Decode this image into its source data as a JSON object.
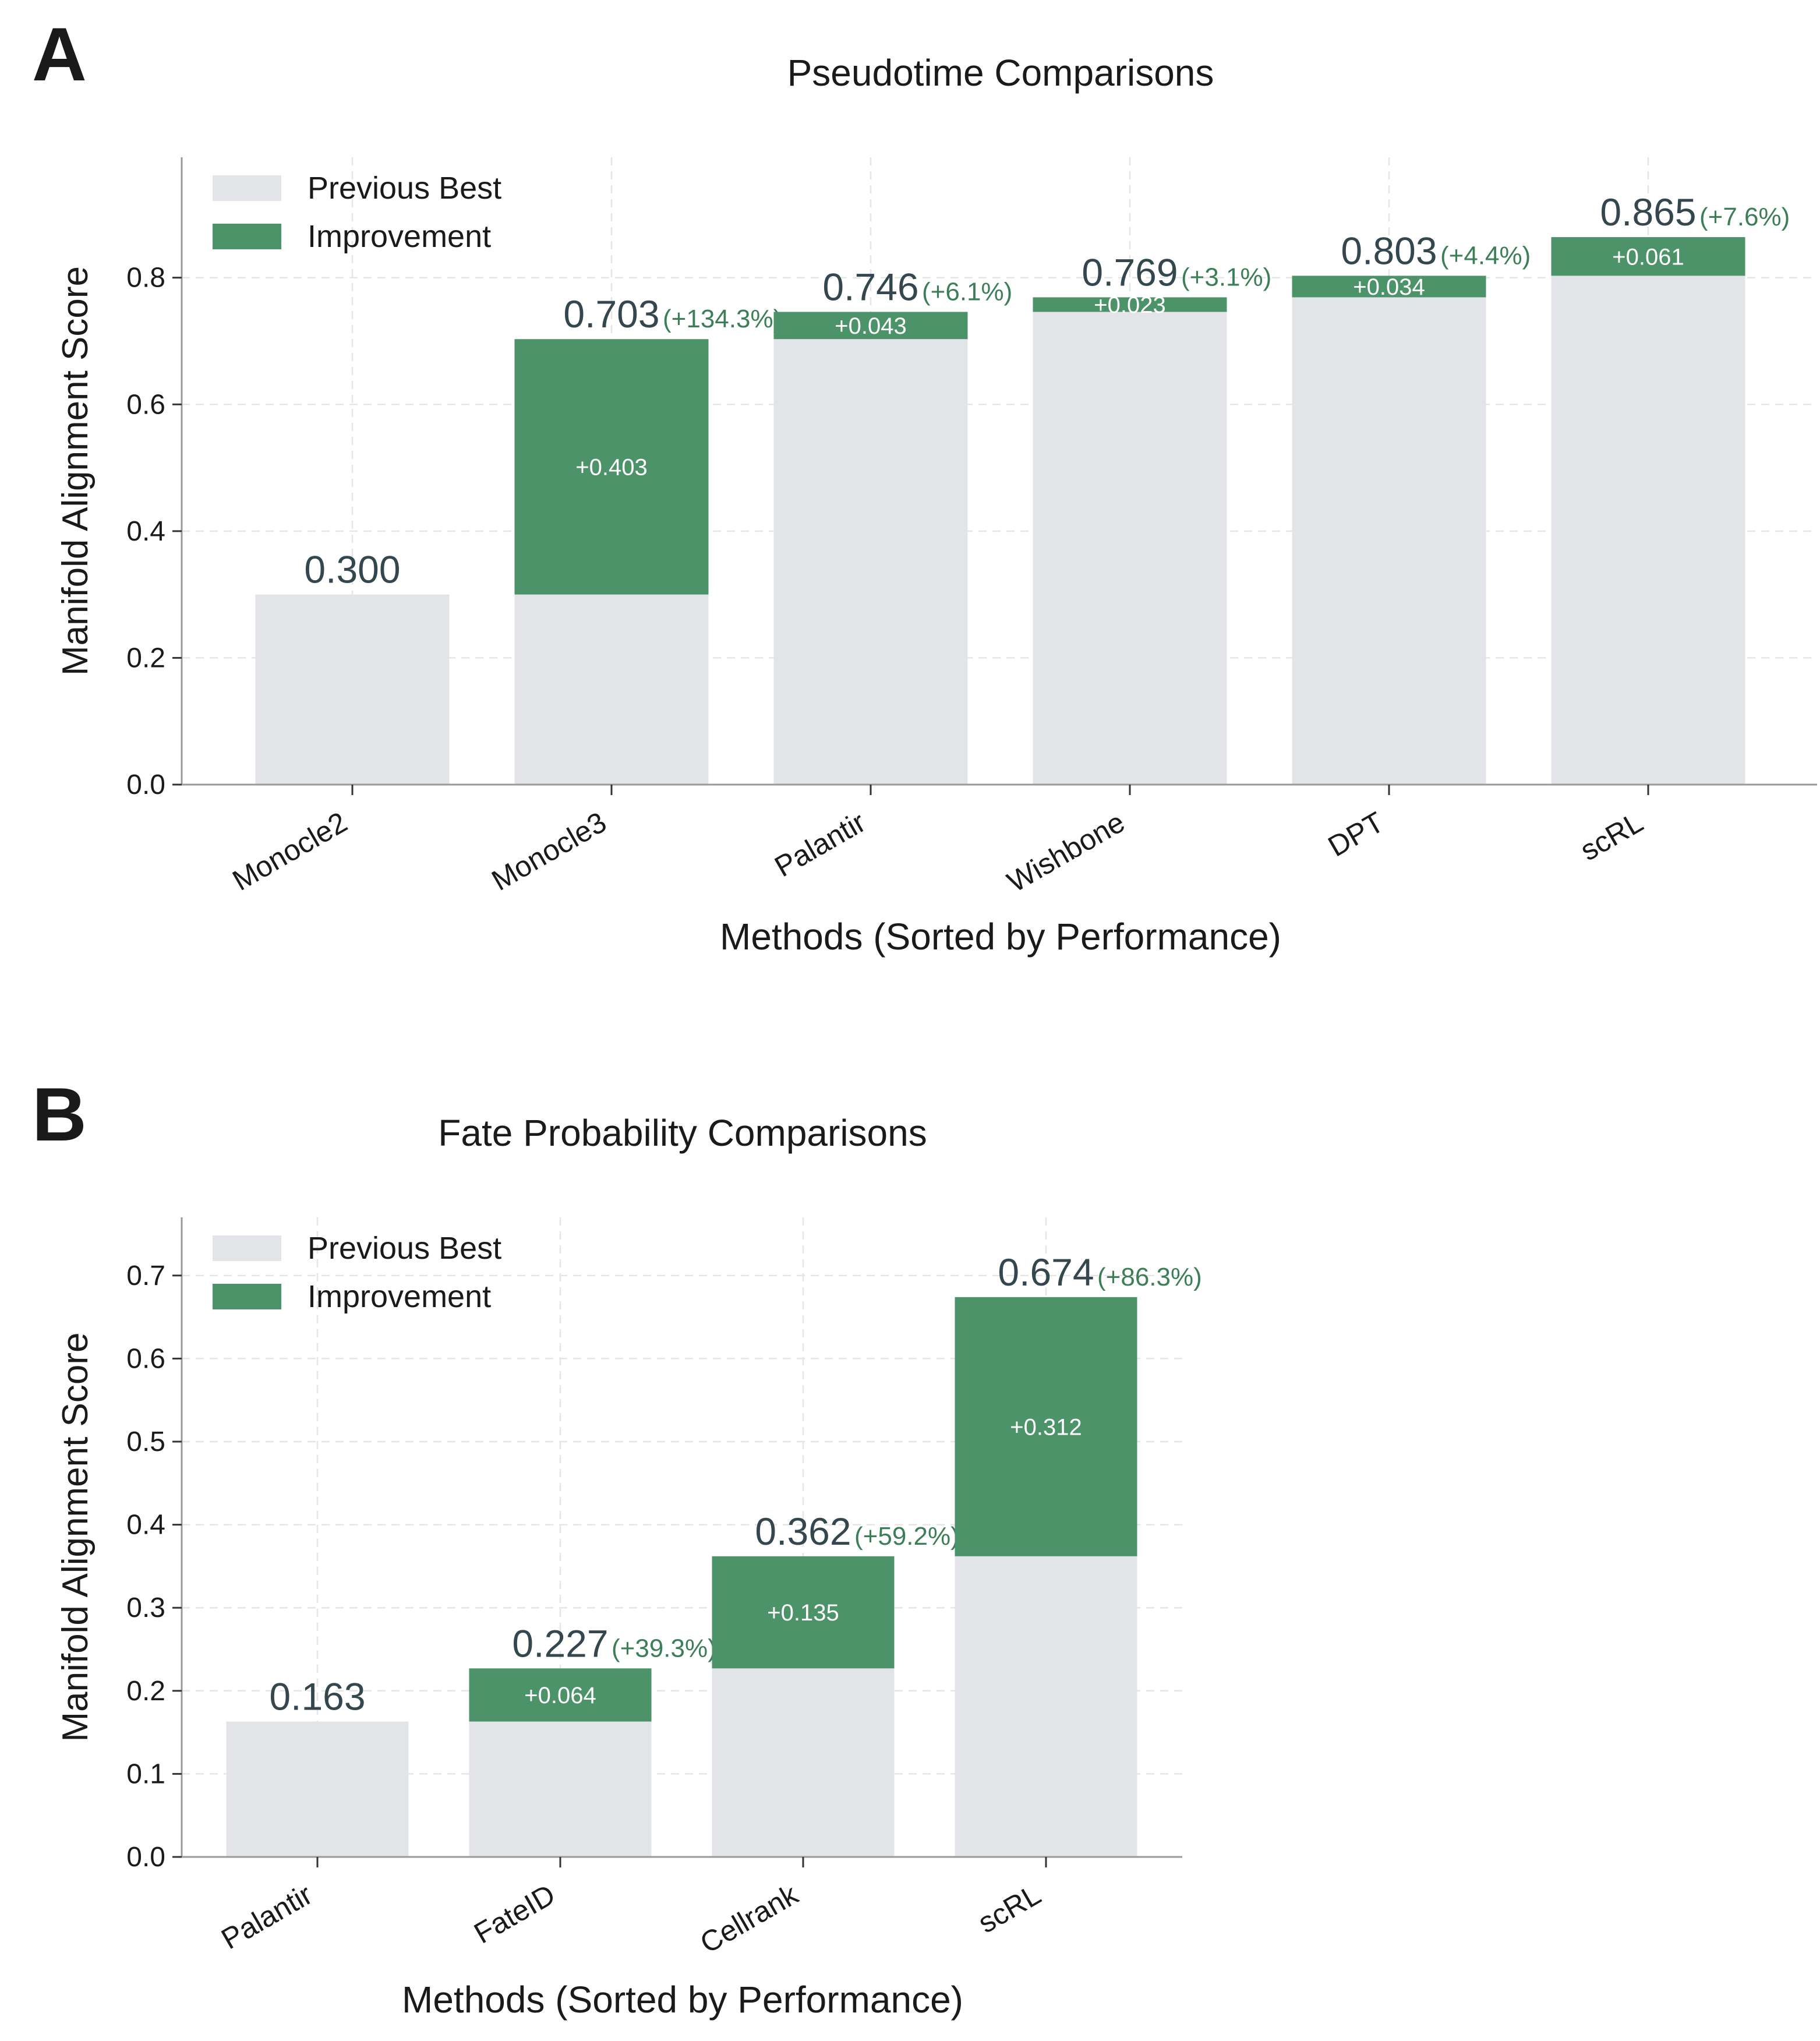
{
  "panel_labels": [
    "A",
    "B"
  ],
  "colors": {
    "previous_best": "#e3e4e7",
    "improvement": "#4d936a",
    "total_label": "#34474f",
    "pct_label": "#3c7f57",
    "axis": "#9a9a9a",
    "grid": "#e6e6e6",
    "text": "#1a1a1a"
  },
  "chart_data": [
    {
      "type": "bar",
      "stacked": true,
      "panel": "A",
      "title": "Pseudotime Comparisons",
      "xlabel": "Methods (Sorted by Performance)",
      "ylabel": "Manifold Alignment Score",
      "ylim": [
        0,
        0.99
      ],
      "yticks": [
        0.0,
        0.2,
        0.4,
        0.6,
        0.8
      ],
      "ytick_labels": [
        "0.0",
        "0.2",
        "0.4",
        "0.6",
        "0.8"
      ],
      "grid": true,
      "legend": {
        "position": "top-left",
        "entries": [
          "Previous Best",
          "Improvement"
        ]
      },
      "categories": [
        "Monocle2",
        "Monocle3",
        "Palantir",
        "Wishbone",
        "DPT",
        "scRL"
      ],
      "series": [
        {
          "name": "Previous Best",
          "values": [
            0.3,
            0.3,
            0.703,
            0.746,
            0.769,
            0.803
          ]
        },
        {
          "name": "Improvement",
          "values": [
            0,
            0.403,
            0.043,
            0.023,
            0.034,
            0.061
          ]
        }
      ],
      "total_labels": [
        "0.300",
        "0.703",
        "0.746",
        "0.769",
        "0.803",
        "0.865"
      ],
      "pct_labels": [
        "",
        "(+134.3%)",
        "(+6.1%)",
        "(+3.1%)",
        "(+4.4%)",
        "(+7.6%)"
      ],
      "improvement_labels": [
        "",
        "+0.403",
        "+0.043",
        "+0.023",
        "+0.034",
        "+0.061"
      ]
    },
    {
      "type": "bar",
      "stacked": true,
      "panel": "B",
      "title": "Fate Probability Comparisons",
      "xlabel": "Methods (Sorted by Performance)",
      "ylabel": "Manifold Alignment Score",
      "ylim": [
        0,
        0.77
      ],
      "yticks": [
        0.0,
        0.1,
        0.2,
        0.3,
        0.4,
        0.5,
        0.6,
        0.7
      ],
      "ytick_labels": [
        "0.0",
        "0.1",
        "0.2",
        "0.3",
        "0.4",
        "0.5",
        "0.6",
        "0.7"
      ],
      "grid": true,
      "legend": {
        "position": "top-left",
        "entries": [
          "Previous Best",
          "Improvement"
        ]
      },
      "categories": [
        "Palantir",
        "FateID",
        "Cellrank",
        "scRL"
      ],
      "series": [
        {
          "name": "Previous Best",
          "values": [
            0.163,
            0.163,
            0.227,
            0.362
          ]
        },
        {
          "name": "Improvement",
          "values": [
            0,
            0.064,
            0.135,
            0.312
          ]
        }
      ],
      "total_labels": [
        "0.163",
        "0.227",
        "0.362",
        "0.674"
      ],
      "pct_labels": [
        "",
        "(+39.3%)",
        "(+59.2%)",
        "(+86.3%)"
      ],
      "improvement_labels": [
        "",
        "+0.064",
        "+0.135",
        "+0.312"
      ]
    }
  ]
}
